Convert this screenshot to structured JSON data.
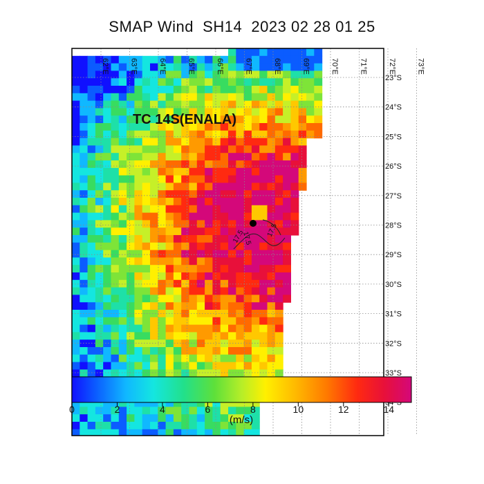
{
  "title": "SMAP Wind  SH14  2023 02 28 01 25",
  "storm_label": "TC 14S(ENALA)",
  "lon_labels": [
    "62°E",
    "63°E",
    "64°E",
    "65°E",
    "66°E",
    "67°E",
    "68°E",
    "69°E",
    "70°E",
    "71°E",
    "72°E",
    "73°E"
  ],
  "lat_labels": [
    "23°S",
    "24°S",
    "25°S",
    "26°S",
    "27°S",
    "28°S",
    "29°S",
    "30°S",
    "31°S",
    "32°S",
    "33°S",
    "34°S"
  ],
  "colorbar": {
    "ticks": [
      "0",
      "2",
      "4",
      "6",
      "8",
      "10",
      "12",
      "14"
    ],
    "unit": "(m/s)"
  },
  "contour_labels": [
    "17.5",
    "17.5",
    "17.5"
  ],
  "colors": {
    "min_wind": "#0a1aff",
    "max_wind": "#d4087a",
    "center_marker": "#000000",
    "grid": "#888888"
  }
}
